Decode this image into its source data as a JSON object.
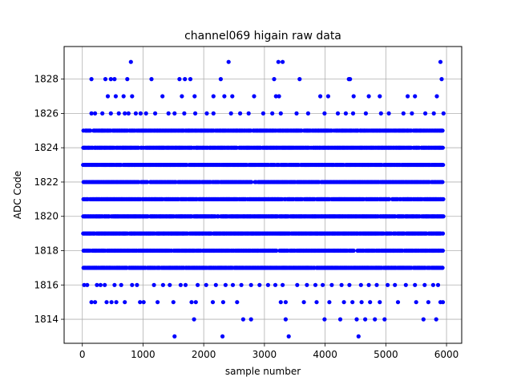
{
  "chart_data": {
    "type": "scatter",
    "title": "channel069 higain raw data",
    "xlabel": "sample number",
    "ylabel": "ADC Code",
    "xlim": [
      -300,
      6250
    ],
    "ylim": [
      1812.6,
      1829.9
    ],
    "xticks": [
      0,
      1000,
      2000,
      3000,
      4000,
      5000,
      6000
    ],
    "yticks": [
      1814,
      1816,
      1818,
      1820,
      1822,
      1824,
      1826,
      1828
    ],
    "grid": true,
    "marker_color": "#0000ff",
    "series": [
      {
        "dense_rows": [
          1817,
          1818,
          1819,
          1820,
          1821,
          1822,
          1823,
          1824,
          1825
        ],
        "n_samples": 5950,
        "sparse_points": [
          [
            1520,
            1813
          ],
          [
            2310,
            1813
          ],
          [
            3400,
            1813
          ],
          [
            4550,
            1813
          ],
          [
            1840,
            1814
          ],
          [
            2650,
            1814
          ],
          [
            2780,
            1814
          ],
          [
            3350,
            1814
          ],
          [
            3990,
            1814
          ],
          [
            4250,
            1814
          ],
          [
            4520,
            1814
          ],
          [
            4660,
            1814
          ],
          [
            4820,
            1814
          ],
          [
            4980,
            1814
          ],
          [
            5620,
            1814
          ],
          [
            5830,
            1814
          ],
          [
            150,
            1815
          ],
          [
            210,
            1815
          ],
          [
            400,
            1815
          ],
          [
            480,
            1815
          ],
          [
            560,
            1815
          ],
          [
            700,
            1815
          ],
          [
            950,
            1815
          ],
          [
            1010,
            1815
          ],
          [
            1240,
            1815
          ],
          [
            1500,
            1815
          ],
          [
            1800,
            1815
          ],
          [
            1870,
            1815
          ],
          [
            2150,
            1815
          ],
          [
            2320,
            1815
          ],
          [
            2550,
            1815
          ],
          [
            3270,
            1815
          ],
          [
            3350,
            1815
          ],
          [
            3650,
            1815
          ],
          [
            3860,
            1815
          ],
          [
            4070,
            1815
          ],
          [
            4310,
            1815
          ],
          [
            4450,
            1815
          ],
          [
            4600,
            1815
          ],
          [
            4740,
            1815
          ],
          [
            4900,
            1815
          ],
          [
            5200,
            1815
          ],
          [
            5500,
            1815
          ],
          [
            5700,
            1815
          ],
          [
            5900,
            1815
          ],
          [
            5940,
            1815
          ],
          [
            30,
            1816
          ],
          [
            80,
            1816
          ],
          [
            240,
            1816
          ],
          [
            300,
            1816
          ],
          [
            370,
            1816
          ],
          [
            530,
            1816
          ],
          [
            640,
            1816
          ],
          [
            820,
            1816
          ],
          [
            900,
            1816
          ],
          [
            1180,
            1816
          ],
          [
            1330,
            1816
          ],
          [
            1440,
            1816
          ],
          [
            1620,
            1816
          ],
          [
            1700,
            1816
          ],
          [
            1900,
            1816
          ],
          [
            2040,
            1816
          ],
          [
            2200,
            1816
          ],
          [
            2360,
            1816
          ],
          [
            2480,
            1816
          ],
          [
            2620,
            1816
          ],
          [
            2780,
            1816
          ],
          [
            2920,
            1816
          ],
          [
            3060,
            1816
          ],
          [
            3180,
            1816
          ],
          [
            3300,
            1816
          ],
          [
            3540,
            1816
          ],
          [
            3700,
            1816
          ],
          [
            3840,
            1816
          ],
          [
            3960,
            1816
          ],
          [
            4110,
            1816
          ],
          [
            4270,
            1816
          ],
          [
            4400,
            1816
          ],
          [
            4590,
            1816
          ],
          [
            4720,
            1816
          ],
          [
            4850,
            1816
          ],
          [
            5030,
            1816
          ],
          [
            5150,
            1816
          ],
          [
            5330,
            1816
          ],
          [
            5480,
            1816
          ],
          [
            5640,
            1816
          ],
          [
            5780,
            1816
          ],
          [
            5860,
            1816
          ],
          [
            150,
            1826
          ],
          [
            210,
            1826
          ],
          [
            330,
            1826
          ],
          [
            470,
            1826
          ],
          [
            600,
            1826
          ],
          [
            700,
            1826
          ],
          [
            760,
            1826
          ],
          [
            880,
            1826
          ],
          [
            960,
            1826
          ],
          [
            1050,
            1826
          ],
          [
            1200,
            1826
          ],
          [
            1420,
            1826
          ],
          [
            1520,
            1826
          ],
          [
            1680,
            1826
          ],
          [
            1860,
            1826
          ],
          [
            2050,
            1826
          ],
          [
            2160,
            1826
          ],
          [
            2450,
            1826
          ],
          [
            2600,
            1826
          ],
          [
            2740,
            1826
          ],
          [
            2980,
            1826
          ],
          [
            3130,
            1826
          ],
          [
            3270,
            1826
          ],
          [
            3530,
            1826
          ],
          [
            3720,
            1826
          ],
          [
            3990,
            1826
          ],
          [
            4210,
            1826
          ],
          [
            4340,
            1826
          ],
          [
            4460,
            1826
          ],
          [
            4670,
            1826
          ],
          [
            4920,
            1826
          ],
          [
            5050,
            1826
          ],
          [
            5290,
            1826
          ],
          [
            5430,
            1826
          ],
          [
            5650,
            1826
          ],
          [
            5790,
            1826
          ],
          [
            5950,
            1826
          ],
          [
            420,
            1827
          ],
          [
            550,
            1827
          ],
          [
            680,
            1827
          ],
          [
            820,
            1827
          ],
          [
            1320,
            1827
          ],
          [
            1640,
            1827
          ],
          [
            1850,
            1827
          ],
          [
            2160,
            1827
          ],
          [
            2340,
            1827
          ],
          [
            2470,
            1827
          ],
          [
            2830,
            1827
          ],
          [
            3190,
            1827
          ],
          [
            3240,
            1827
          ],
          [
            3920,
            1827
          ],
          [
            4050,
            1827
          ],
          [
            4470,
            1827
          ],
          [
            4720,
            1827
          ],
          [
            4900,
            1827
          ],
          [
            5360,
            1827
          ],
          [
            5480,
            1827
          ],
          [
            5840,
            1827
          ],
          [
            150,
            1828
          ],
          [
            380,
            1828
          ],
          [
            470,
            1828
          ],
          [
            530,
            1828
          ],
          [
            740,
            1828
          ],
          [
            1140,
            1828
          ],
          [
            1600,
            1828
          ],
          [
            1690,
            1828
          ],
          [
            1780,
            1828
          ],
          [
            2280,
            1828
          ],
          [
            3160,
            1828
          ],
          [
            3580,
            1828
          ],
          [
            4390,
            1828
          ],
          [
            4410,
            1828
          ],
          [
            5920,
            1828
          ],
          [
            800,
            1829
          ],
          [
            2410,
            1829
          ],
          [
            3230,
            1829
          ],
          [
            3300,
            1829
          ],
          [
            5900,
            1829
          ]
        ]
      }
    ]
  }
}
